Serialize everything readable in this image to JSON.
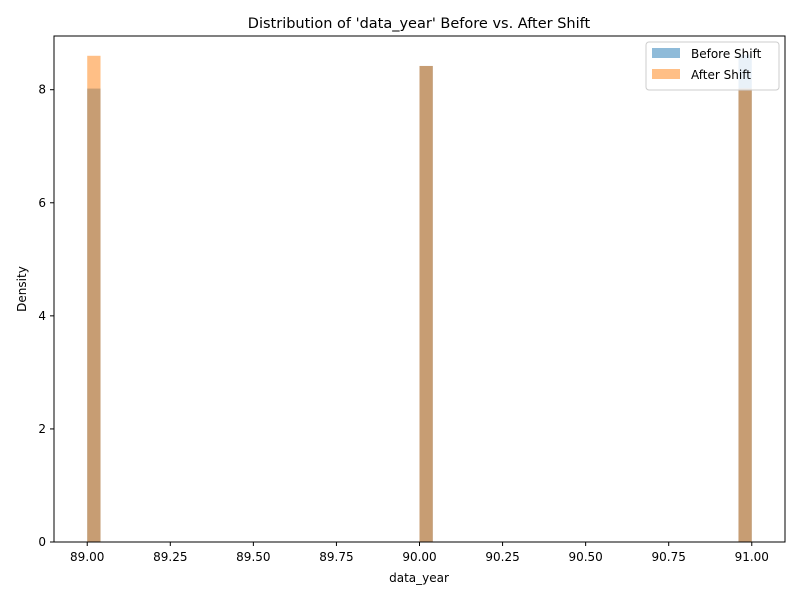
{
  "chart_data": {
    "type": "bar",
    "title": "Distribution of 'data_year' Before vs. After Shift",
    "xlabel": "data_year",
    "ylabel": "Density",
    "xlim": [
      88.9,
      91.1
    ],
    "ylim": [
      0,
      8.95
    ],
    "x_ticks": [
      "89.00",
      "89.25",
      "89.50",
      "89.75",
      "90.00",
      "90.25",
      "90.50",
      "90.75",
      "91.00"
    ],
    "y_ticks": [
      "0",
      "2",
      "4",
      "6",
      "8"
    ],
    "bin_width": 0.04,
    "grid": false,
    "legend_position": "top-right",
    "series": [
      {
        "name": "Before Shift",
        "color": "#1f77b4",
        "opacity": 0.5,
        "bars": [
          {
            "x0": 89.0,
            "x1": 89.04,
            "value": 8.02
          },
          {
            "x0": 90.0,
            "x1": 90.04,
            "value": 8.42
          },
          {
            "x0": 90.96,
            "x1": 91.0,
            "value": 8.62
          }
        ]
      },
      {
        "name": "After Shift",
        "color": "#ff7f0e",
        "opacity": 0.5,
        "bars": [
          {
            "x0": 89.0,
            "x1": 89.04,
            "value": 8.6
          },
          {
            "x0": 90.0,
            "x1": 90.04,
            "value": 8.42
          },
          {
            "x0": 90.96,
            "x1": 91.0,
            "value": 8.02
          }
        ]
      }
    ]
  }
}
